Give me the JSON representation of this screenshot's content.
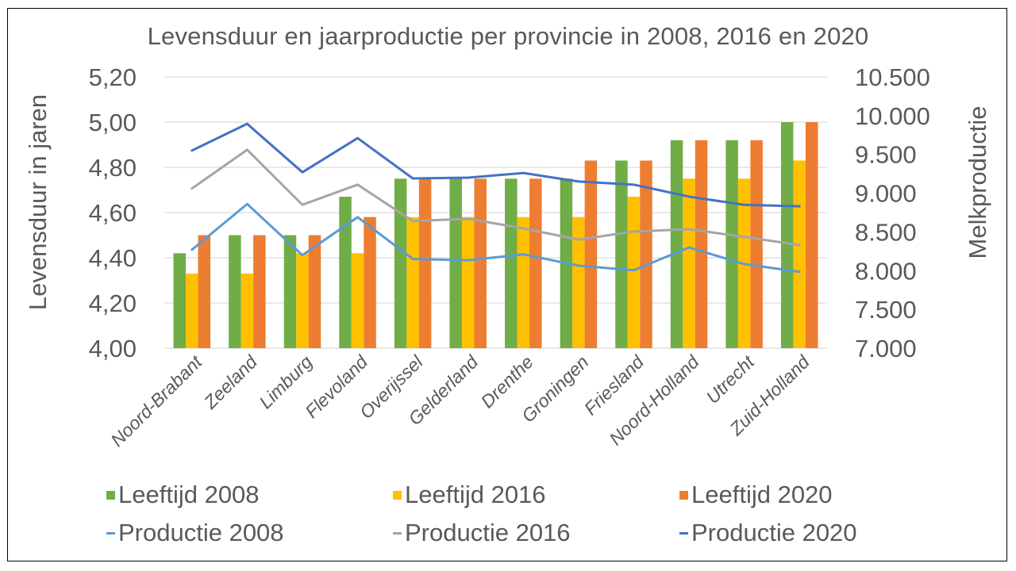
{
  "chart_data": {
    "type": "bar",
    "title": "Levensduur en jaarproductie per provincie in 2008, 2016 en 2020",
    "xlabel": "",
    "ylabel": "Levensduur in jaren",
    "ylabel_right": "Melkproductie",
    "ylim": [
      4.0,
      5.2
    ],
    "ylim_right": [
      7000,
      10500
    ],
    "yticks": [
      "4,00",
      "4,20",
      "4,40",
      "4,60",
      "4,80",
      "5,00",
      "5,20"
    ],
    "yticks_right": [
      "7.000",
      "7.500",
      "8.000",
      "8.500",
      "9.000",
      "9.500",
      "10.000",
      "10.500"
    ],
    "grid": true,
    "legend_position": "bottom",
    "categories": [
      "Noord-Brabant",
      "Zeeland",
      "Limburg",
      "Flevoland",
      "Overijssel",
      "Gelderland",
      "Drenthe",
      "Groningen",
      "Friesland",
      "Noord-Holland",
      "Utrecht",
      "Zuid-Holland"
    ],
    "series": [
      {
        "name": "Leeftijd 2008",
        "type": "bar",
        "axis": "left",
        "color": "#70AD47",
        "values": [
          4.42,
          4.5,
          4.5,
          4.67,
          4.75,
          4.75,
          4.75,
          4.75,
          4.83,
          4.92,
          4.92,
          5.0
        ]
      },
      {
        "name": "Leeftijd 2016",
        "type": "bar",
        "axis": "left",
        "color": "#FFC000",
        "values": [
          4.33,
          4.33,
          4.42,
          4.42,
          4.58,
          4.58,
          4.58,
          4.58,
          4.67,
          4.75,
          4.75,
          4.83
        ]
      },
      {
        "name": "Leeftijd 2020",
        "type": "bar",
        "axis": "left",
        "color": "#ED7D31",
        "values": [
          4.5,
          4.5,
          4.5,
          4.58,
          4.75,
          4.75,
          4.75,
          4.83,
          4.83,
          4.92,
          4.92,
          5.0
        ]
      },
      {
        "name": "Productie 2008",
        "type": "line",
        "axis": "right",
        "color": "#5B9BD5",
        "values": [
          8270,
          8860,
          8200,
          8690,
          8150,
          8135,
          8210,
          8065,
          8005,
          8300,
          8085,
          7985
        ]
      },
      {
        "name": "Productie 2016",
        "type": "line",
        "axis": "right",
        "color": "#A5A5A5",
        "values": [
          9060,
          9560,
          8850,
          9110,
          8640,
          8670,
          8545,
          8400,
          8505,
          8535,
          8435,
          8330
        ]
      },
      {
        "name": "Productie 2020",
        "type": "line",
        "axis": "right",
        "color": "#4472C4",
        "values": [
          9550,
          9895,
          9270,
          9710,
          9190,
          9200,
          9260,
          9150,
          9110,
          8955,
          8850,
          8830
        ]
      }
    ]
  },
  "legend": {
    "items": [
      "Leeftijd 2008",
      "Leeftijd 2016",
      "Leeftijd 2020",
      "Productie 2008",
      "Productie 2016",
      "Productie 2020"
    ]
  }
}
